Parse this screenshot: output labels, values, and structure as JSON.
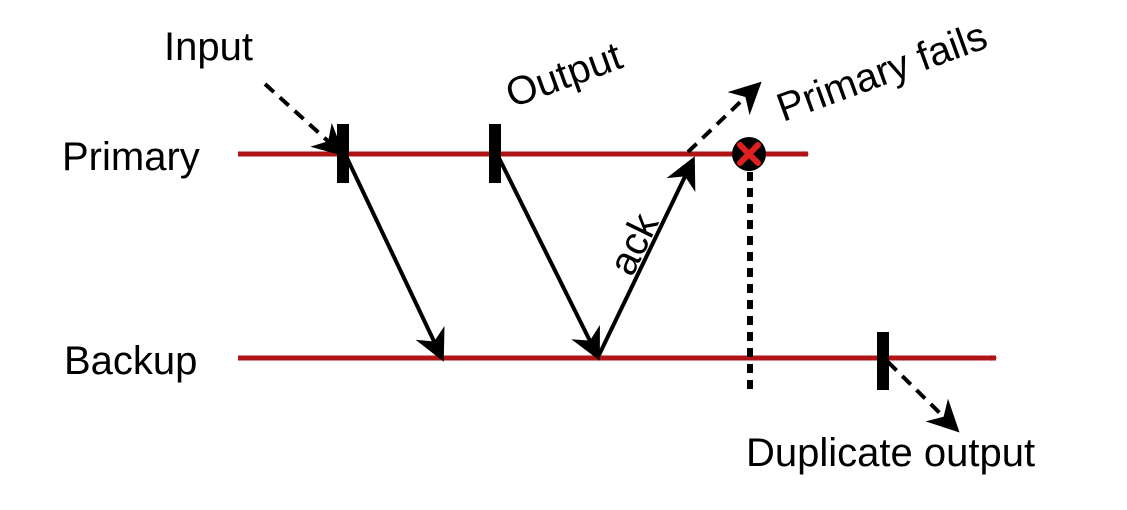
{
  "diagram": {
    "lanes": {
      "primary": "Primary",
      "backup": "Backup"
    },
    "annotations": {
      "input": "Input",
      "output": "Output",
      "ack": "ack",
      "primary_fails": "Primary fails",
      "duplicate_output": "Duplicate output"
    },
    "colors": {
      "timeline": "#b01414",
      "failure_mark": "#e02020",
      "arrows": "#000000"
    },
    "icons": {
      "failure": "x-mark-icon"
    }
  }
}
